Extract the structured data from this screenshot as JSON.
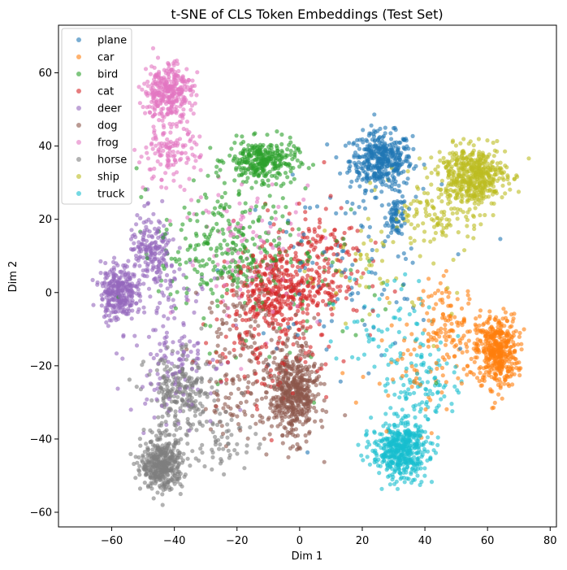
{
  "chart_data": {
    "type": "scatter",
    "title": "t-SNE of CLS Token Embeddings (Test Set)",
    "xlabel": "Dim 1",
    "ylabel": "Dim 2",
    "xlim": [
      -77,
      82
    ],
    "ylim": [
      -64,
      73
    ],
    "xticks": [
      -60,
      -40,
      -20,
      0,
      20,
      40,
      60,
      80
    ],
    "yticks": [
      -60,
      -40,
      -20,
      0,
      20,
      40,
      60
    ],
    "xtick_labels": [
      "−60",
      "−40",
      "−20",
      "0",
      "20",
      "40",
      "60",
      "80"
    ],
    "ytick_labels": [
      "−60",
      "−40",
      "−20",
      "0",
      "20",
      "40",
      "60"
    ],
    "grid": false,
    "legend_position": "top-left",
    "marker_alpha": 0.6,
    "series": [
      {
        "name": "plane",
        "color": "#1f77b4",
        "clusters": [
          {
            "center": [
              26,
              36
            ],
            "spread": [
              9,
              7
            ],
            "count": 420
          },
          {
            "center": [
              31,
              21
            ],
            "spread": [
              3,
              5
            ],
            "count": 80
          },
          {
            "center": [
              12,
              5
            ],
            "spread": [
              30,
              22
            ],
            "count": 90
          }
        ]
      },
      {
        "name": "car",
        "color": "#ff7f0e",
        "clusters": [
          {
            "center": [
              63,
              -16
            ],
            "spread": [
              6,
              9
            ],
            "count": 430
          },
          {
            "center": [
              48,
              -10
            ],
            "spread": [
              9,
              12
            ],
            "count": 120
          },
          {
            "center": [
              40,
              -20
            ],
            "spread": [
              20,
              15
            ],
            "count": 60
          }
        ]
      },
      {
        "name": "bird",
        "color": "#2ca02c",
        "clusters": [
          {
            "center": [
              -12,
              36
            ],
            "spread": [
              10,
              5
            ],
            "count": 300
          },
          {
            "center": [
              -25,
              12
            ],
            "spread": [
              18,
              16
            ],
            "count": 250
          },
          {
            "center": [
              0,
              5
            ],
            "spread": [
              28,
              25
            ],
            "count": 90
          }
        ]
      },
      {
        "name": "cat",
        "color": "#d62728",
        "clusters": [
          {
            "center": [
              -8,
              0
            ],
            "spread": [
              12,
              10
            ],
            "count": 330
          },
          {
            "center": [
              5,
              8
            ],
            "spread": [
              14,
              14
            ],
            "count": 200
          },
          {
            "center": [
              -10,
              -15
            ],
            "spread": [
              20,
              15
            ],
            "count": 100
          }
        ]
      },
      {
        "name": "deer",
        "color": "#9467bd",
        "clusters": [
          {
            "center": [
              -58,
              0
            ],
            "spread": [
              5,
              7
            ],
            "count": 280
          },
          {
            "center": [
              -47,
              10
            ],
            "spread": [
              7,
              10
            ],
            "count": 200
          },
          {
            "center": [
              -40,
              -15
            ],
            "spread": [
              12,
              18
            ],
            "count": 150
          }
        ]
      },
      {
        "name": "dog",
        "color": "#8c564b",
        "clusters": [
          {
            "center": [
              -2,
              -28
            ],
            "spread": [
              7,
              11
            ],
            "count": 500
          },
          {
            "center": [
              -15,
              -10
            ],
            "spread": [
              15,
              15
            ],
            "count": 120
          },
          {
            "center": [
              -20,
              -30
            ],
            "spread": [
              10,
              8
            ],
            "count": 60
          }
        ]
      },
      {
        "name": "frog",
        "color": "#e377c2",
        "clusters": [
          {
            "center": [
              -42,
              55
            ],
            "spread": [
              7,
              7
            ],
            "count": 330
          },
          {
            "center": [
              -42,
              38
            ],
            "spread": [
              9,
              7
            ],
            "count": 130
          },
          {
            "center": [
              -15,
              12
            ],
            "spread": [
              20,
              18
            ],
            "count": 110
          }
        ]
      },
      {
        "name": "horse",
        "color": "#7f7f7f",
        "clusters": [
          {
            "center": [
              -44,
              -47
            ],
            "spread": [
              6,
              6
            ],
            "count": 420
          },
          {
            "center": [
              -38,
              -28
            ],
            "spread": [
              10,
              10
            ],
            "count": 240
          },
          {
            "center": [
              -25,
              -40
            ],
            "spread": [
              10,
              8
            ],
            "count": 60
          }
        ]
      },
      {
        "name": "ship",
        "color": "#bcbd22",
        "clusters": [
          {
            "center": [
              55,
              32
            ],
            "spread": [
              10,
              7
            ],
            "count": 500
          },
          {
            "center": [
              45,
              20
            ],
            "spread": [
              12,
              8
            ],
            "count": 100
          },
          {
            "center": [
              25,
              10
            ],
            "spread": [
              22,
              16
            ],
            "count": 60
          }
        ]
      },
      {
        "name": "truck",
        "color": "#17becf",
        "clusters": [
          {
            "center": [
              32,
              -43
            ],
            "spread": [
              8,
              7
            ],
            "count": 480
          },
          {
            "center": [
              40,
              -25
            ],
            "spread": [
              10,
              10
            ],
            "count": 100
          },
          {
            "center": [
              28,
              -8
            ],
            "spread": [
              14,
              14
            ],
            "count": 60
          }
        ]
      }
    ]
  }
}
